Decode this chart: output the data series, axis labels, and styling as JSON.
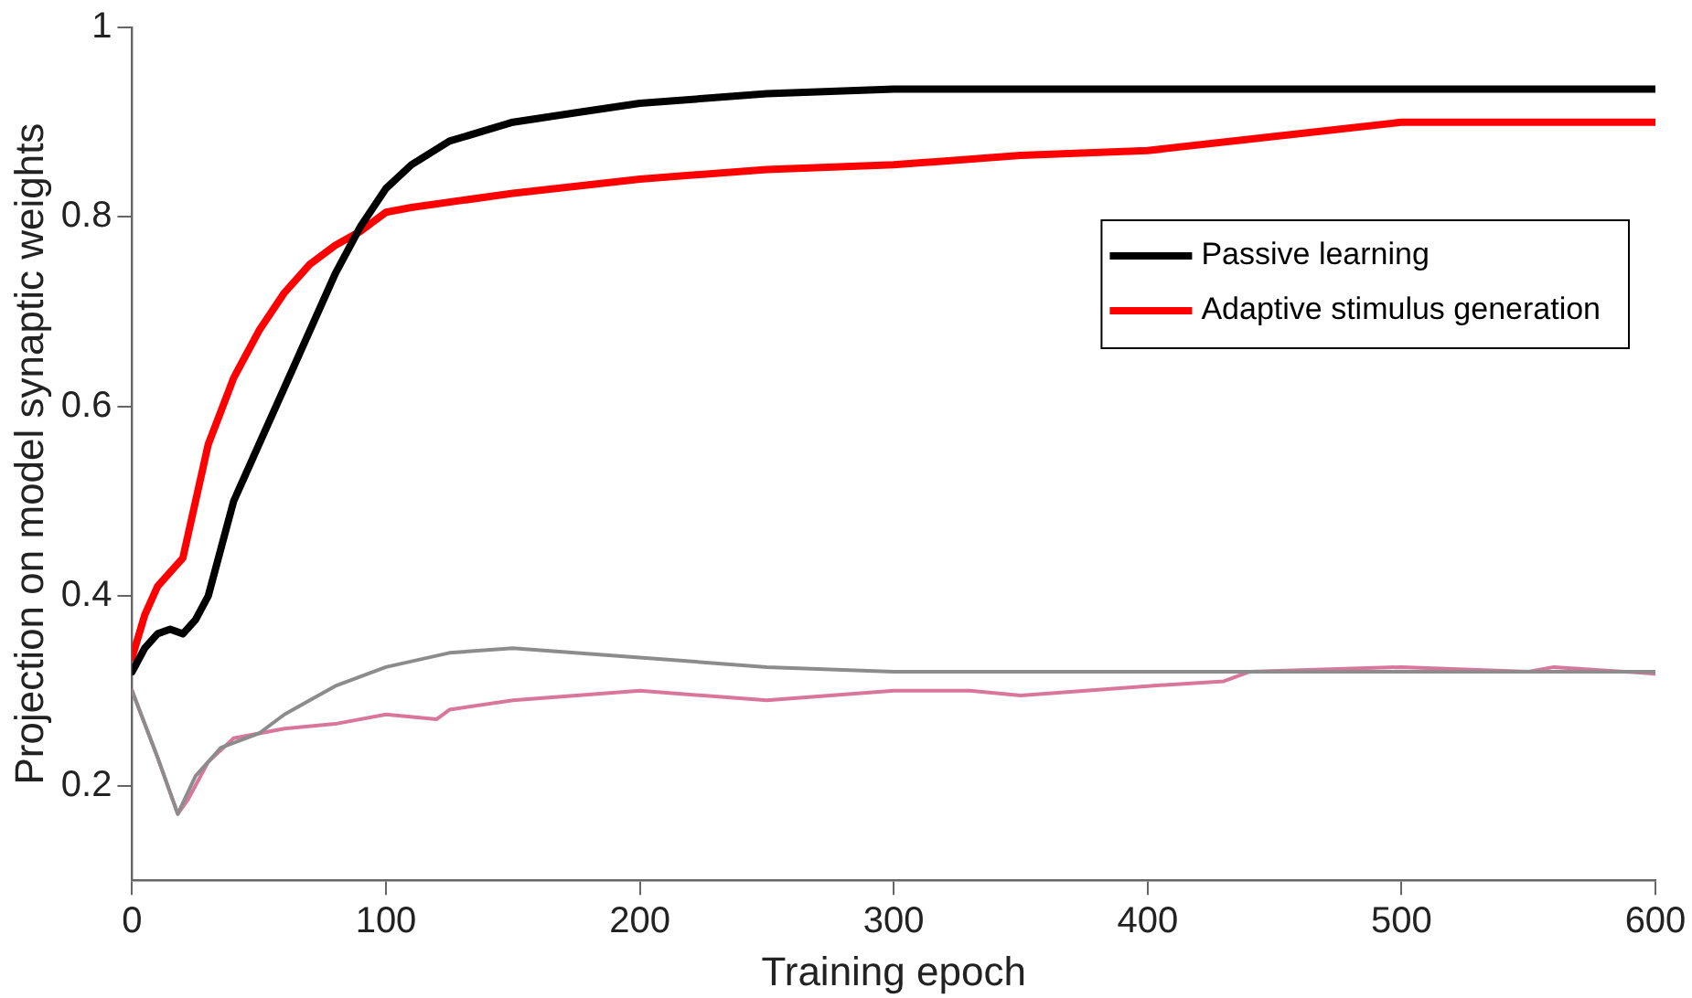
{
  "chart_data": {
    "type": "line",
    "xlabel": "Training epoch",
    "ylabel": "Projection on model synaptic weights",
    "xlim": [
      0,
      600
    ],
    "xticks": [
      0,
      100,
      200,
      300,
      400,
      500,
      600
    ],
    "ylim": [
      0.1,
      1
    ],
    "yticks": [
      {
        "value": 0.2,
        "label": "0.2"
      },
      {
        "value": 0.4,
        "label": "0.4"
      },
      {
        "value": 0.6,
        "label": "0.6"
      },
      {
        "value": 0.8,
        "label": "0.8"
      },
      1
    ],
    "grid": false,
    "legend": "top right",
    "marker": "none",
    "line_style": "solid",
    "series": [
      {
        "name": "Passive learning",
        "color": "#000000",
        "x": [
          0,
          5,
          10,
          15,
          20,
          25,
          30,
          35,
          40,
          50,
          60,
          70,
          80,
          90,
          100,
          110,
          125,
          150,
          175,
          200,
          250,
          300,
          400,
          500,
          600
        ],
        "values": [
          0.32,
          0.345,
          0.36,
          0.365,
          0.36,
          0.375,
          0.4,
          0.45,
          0.5,
          0.56,
          0.62,
          0.68,
          0.74,
          0.79,
          0.83,
          0.855,
          0.88,
          0.9,
          0.91,
          0.92,
          0.93,
          0.935,
          0.935,
          0.935,
          0.935
        ]
      },
      {
        "name": "Adaptive stimulus generation",
        "color": "#ff0000",
        "x": [
          0,
          5,
          10,
          15,
          20,
          25,
          30,
          40,
          50,
          60,
          70,
          80,
          90,
          100,
          110,
          150,
          200,
          250,
          300,
          350,
          400,
          450,
          500,
          600
        ],
        "values": [
          0.335,
          0.38,
          0.41,
          0.425,
          0.44,
          0.5,
          0.56,
          0.63,
          0.68,
          0.72,
          0.75,
          0.77,
          0.785,
          0.805,
          0.81,
          0.825,
          0.84,
          0.85,
          0.855,
          0.865,
          0.87,
          0.885,
          0.9,
          0.9
        ]
      },
      {
        "color": "#8c8c8c",
        "x": [
          0,
          10,
          18,
          25,
          35,
          50,
          60,
          80,
          100,
          125,
          150,
          200,
          250,
          300,
          400,
          500,
          600
        ],
        "values": [
          0.3,
          0.23,
          0.17,
          0.21,
          0.24,
          0.255,
          0.275,
          0.305,
          0.325,
          0.34,
          0.345,
          0.335,
          0.325,
          0.32,
          0.32,
          0.32,
          0.32
        ]
      },
      {
        "color": "#d9769b",
        "x": [
          0,
          10,
          18,
          22,
          30,
          40,
          60,
          80,
          100,
          120,
          125,
          150,
          200,
          250,
          300,
          330,
          350,
          400,
          430,
          440,
          500,
          550,
          560,
          600
        ],
        "values": [
          0.3,
          0.23,
          0.17,
          0.185,
          0.225,
          0.25,
          0.26,
          0.265,
          0.275,
          0.27,
          0.28,
          0.29,
          0.3,
          0.29,
          0.3,
          0.3,
          0.295,
          0.305,
          0.31,
          0.32,
          0.325,
          0.32,
          0.325,
          0.318
        ]
      }
    ]
  }
}
